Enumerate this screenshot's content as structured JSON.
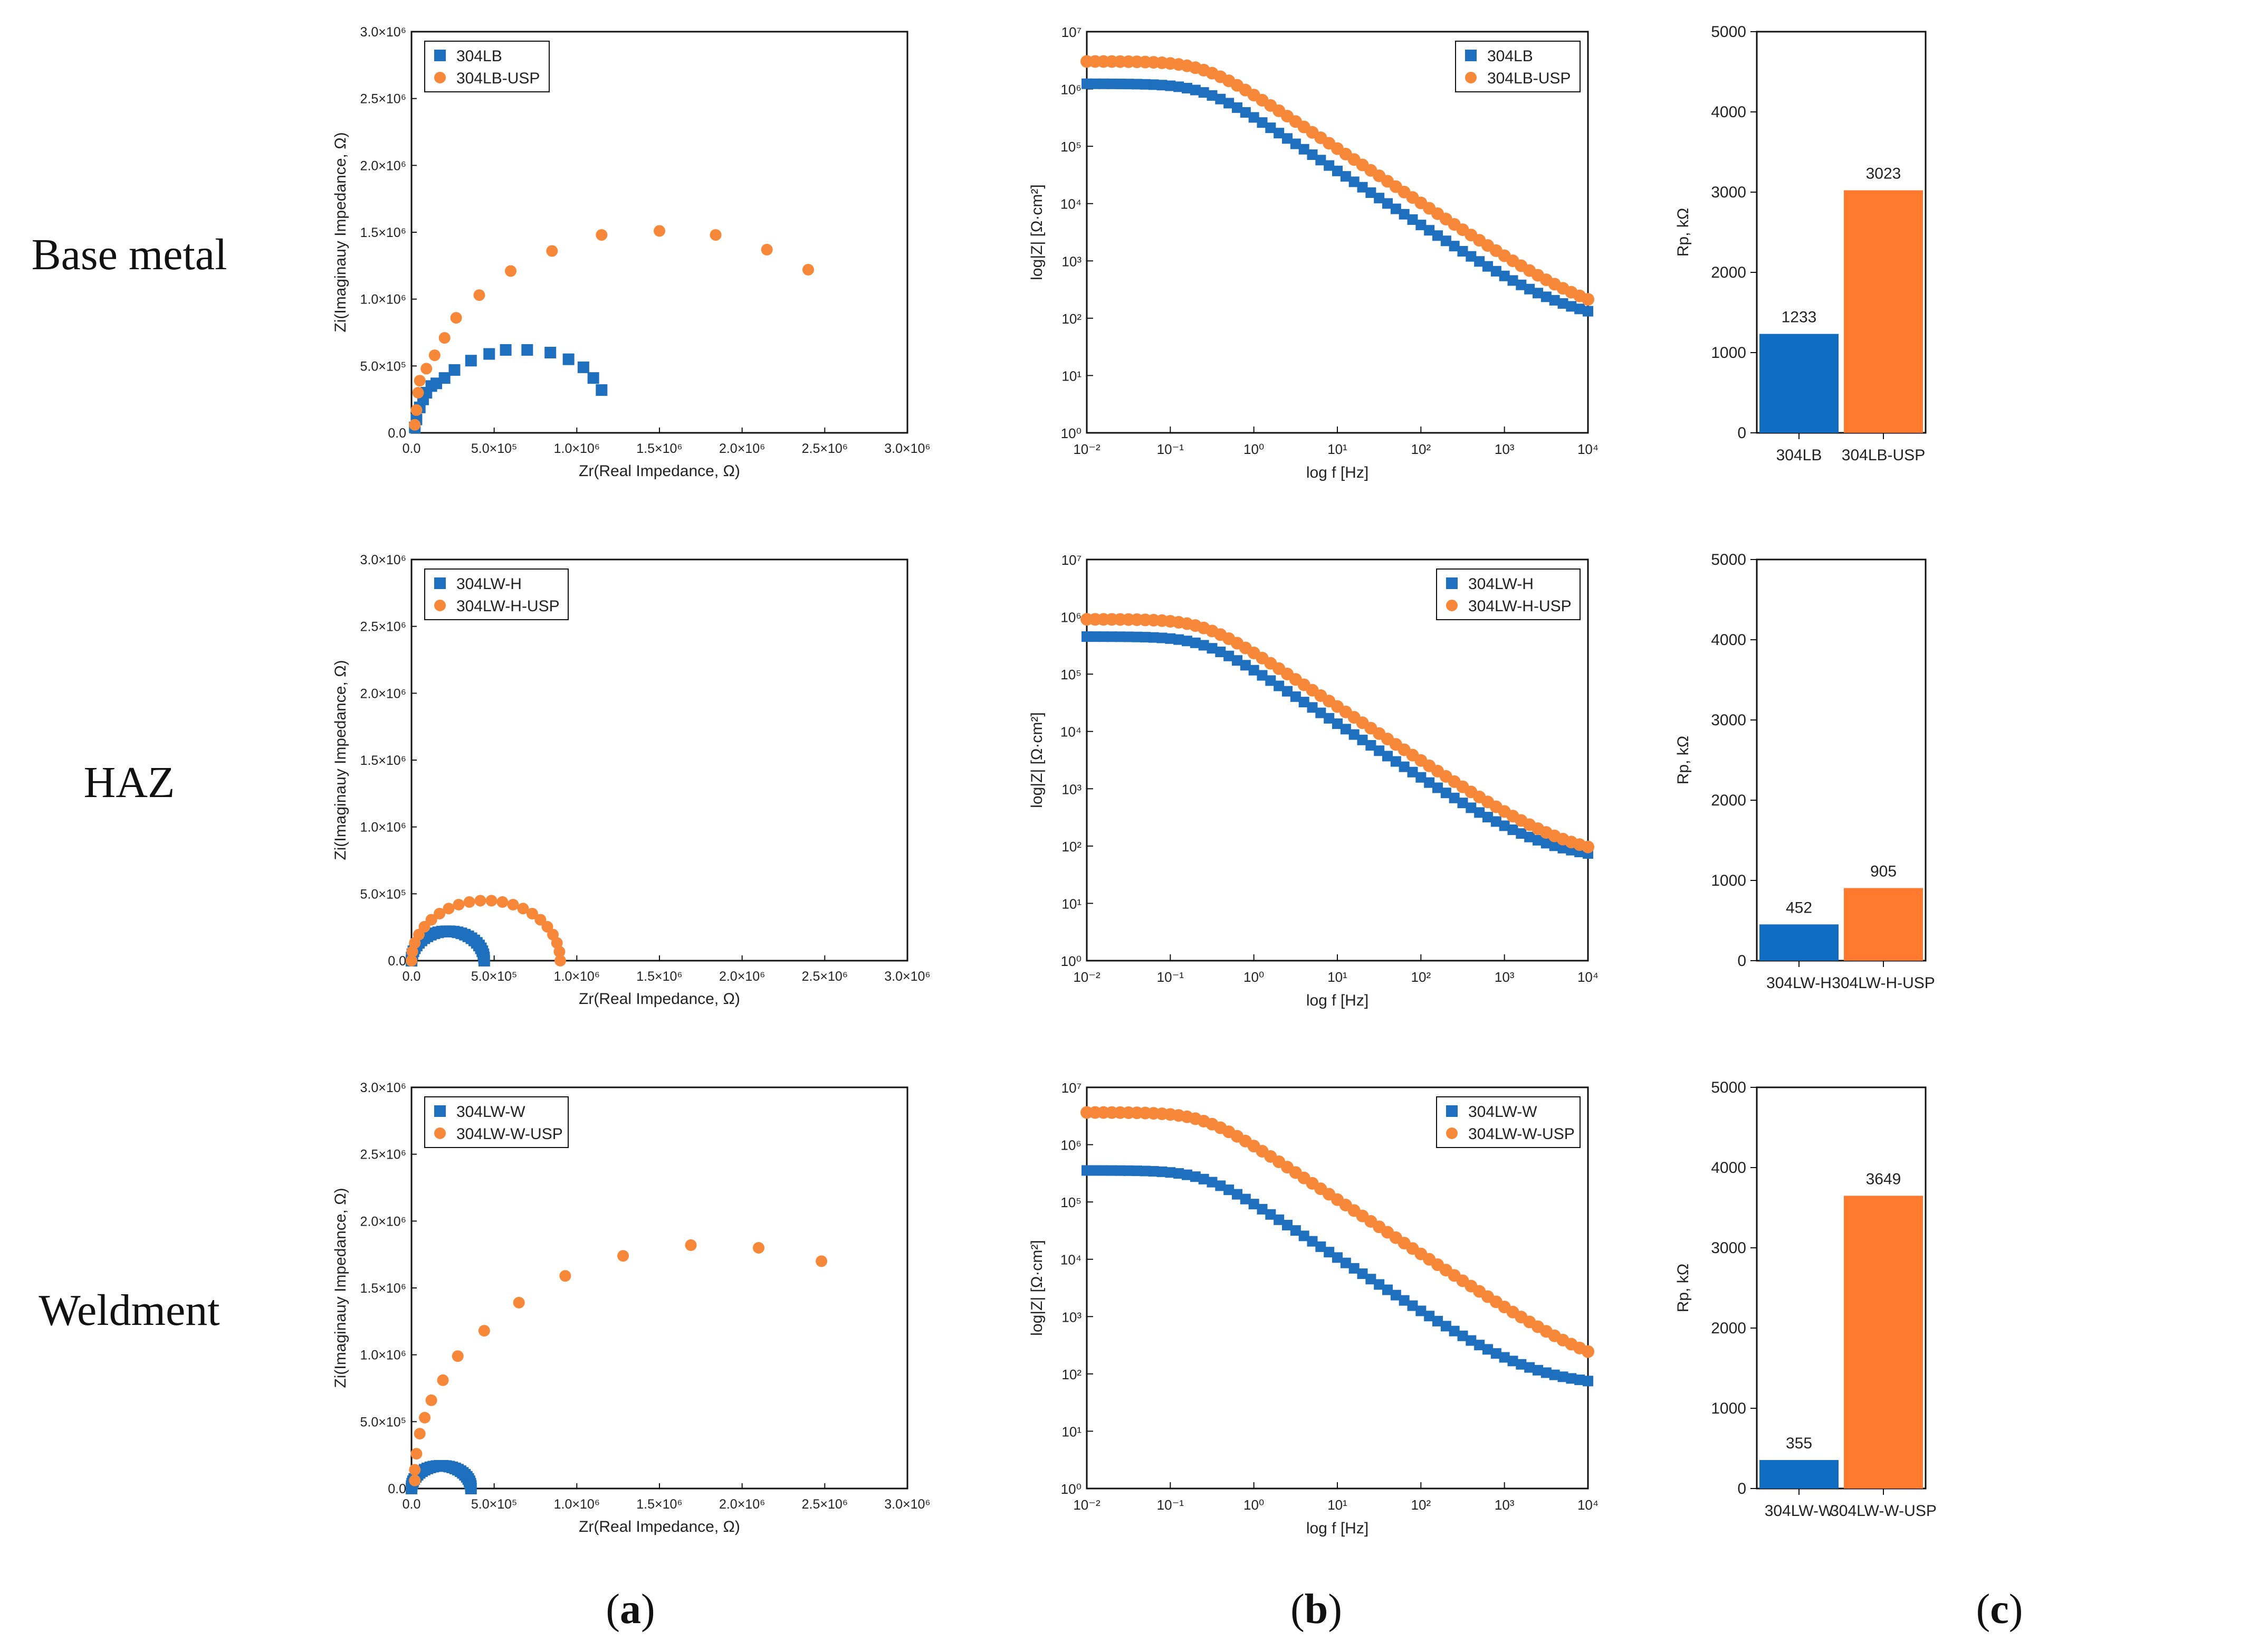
{
  "row_labels": [
    "Base metal",
    "HAZ",
    "Weldment"
  ],
  "panel_labels": {
    "a": "a",
    "b": "b",
    "c": "c"
  },
  "colors": {
    "series1": "#1f6fbf",
    "series2": "#f7883a",
    "bar1": "#0f6cc0",
    "bar2": "#ff7a2e"
  },
  "chart_data": [
    {
      "id": "nyquist-base",
      "type": "scatter",
      "xlabel": "Zr(Real Impedance, Ω)",
      "ylabel": "Zi(Imaginauy Impedance, Ω)",
      "xlim": [
        0,
        3000000
      ],
      "ylim": [
        0,
        3000000
      ],
      "xticks": [
        "0.0",
        "5.0×10⁵",
        "1.0×10⁶",
        "1.5×10⁶",
        "2.0×10⁶",
        "2.5×10⁶",
        "3.0×10⁶"
      ],
      "yticks": [
        "0.0",
        "5.0×10⁵",
        "1.0×10⁶",
        "1.5×10⁶",
        "2.0×10⁶",
        "2.5×10⁶",
        "3.0×10⁶"
      ],
      "legend_position": "top-left",
      "series": [
        {
          "name": "304LB",
          "marker": "square",
          "points": [
            [
              0.02,
              0.04
            ],
            [
              0.03,
              0.1
            ],
            [
              0.05,
              0.19
            ],
            [
              0.07,
              0.25
            ],
            [
              0.09,
              0.3
            ],
            [
              0.12,
              0.35
            ],
            [
              0.15,
              0.37
            ],
            [
              0.2,
              0.41
            ],
            [
              0.26,
              0.47
            ],
            [
              0.36,
              0.54
            ],
            [
              0.47,
              0.59
            ],
            [
              0.57,
              0.62
            ],
            [
              0.7,
              0.62
            ],
            [
              0.84,
              0.6
            ],
            [
              0.95,
              0.55
            ],
            [
              1.04,
              0.49
            ],
            [
              1.1,
              0.41
            ],
            [
              1.15,
              0.32
            ]
          ]
        },
        {
          "name": "304LB-USP",
          "marker": "circle",
          "points": [
            [
              0.02,
              0.06
            ],
            [
              0.03,
              0.17
            ],
            [
              0.04,
              0.3
            ],
            [
              0.05,
              0.39
            ],
            [
              0.09,
              0.48
            ],
            [
              0.14,
              0.58
            ],
            [
              0.2,
              0.71
            ],
            [
              0.27,
              0.86
            ],
            [
              0.41,
              1.03
            ],
            [
              0.6,
              1.21
            ],
            [
              0.85,
              1.36
            ],
            [
              1.15,
              1.48
            ],
            [
              1.5,
              1.51
            ],
            [
              1.84,
              1.48
            ],
            [
              2.15,
              1.37
            ],
            [
              2.4,
              1.22
            ]
          ]
        }
      ]
    },
    {
      "id": "bode-base",
      "type": "scatter",
      "xlabel": "log f [Hz]",
      "ylabel": "log|Z| [Ω·cm²]",
      "xlim": [
        0.01,
        10000
      ],
      "ylim": [
        1,
        10000000
      ],
      "scale": "log-log",
      "xticks": [
        "10⁻²",
        "10⁻¹",
        "10⁰",
        "10¹",
        "10²",
        "10³",
        "10⁴"
      ],
      "yticks": [
        "10⁰",
        "10¹",
        "10²",
        "10³",
        "10⁴",
        "10⁵",
        "10⁶",
        "10⁷"
      ],
      "legend_position": "top-right",
      "series": [
        {
          "name": "304LB",
          "marker": "square",
          "z_low": 1233000,
          "z_high": 80
        },
        {
          "name": "304LB-USP",
          "marker": "circle",
          "z_low": 3023000,
          "z_high": 85
        }
      ]
    },
    {
      "id": "bar-base",
      "type": "bar",
      "ylabel": "Rp, kΩ",
      "ylim": [
        0,
        5000
      ],
      "yticks": [
        "0",
        "1000",
        "2000",
        "3000",
        "4000",
        "5000"
      ],
      "categories": [
        "304LB",
        "304LB-USP"
      ],
      "values": [
        1233,
        3023
      ],
      "value_labels": [
        "1233",
        "3023"
      ]
    },
    {
      "id": "nyquist-haz",
      "type": "scatter",
      "xlabel": "Zr(Real Impedance, Ω)",
      "ylabel": "Zi(Imaginauy Impedance, Ω)",
      "xlim": [
        0,
        3000000
      ],
      "ylim": [
        0,
        3000000
      ],
      "xticks": [
        "0.0",
        "5.0×10⁵",
        "1.0×10⁶",
        "1.5×10⁶",
        "2.0×10⁶",
        "2.5×10⁶",
        "3.0×10⁶"
      ],
      "yticks": [
        "0.0",
        "5.0×10⁵",
        "1.0×10⁶",
        "1.5×10⁶",
        "2.0×10⁶",
        "2.5×10⁶",
        "3.0×10⁶"
      ],
      "legend_position": "top-left",
      "series": [
        {
          "name": "304LW-H",
          "marker": "square",
          "center": 0.22,
          "radius": 0.22,
          "height": 0.22,
          "count": 30
        },
        {
          "name": "304LW-H-USP",
          "marker": "circle",
          "center": 0.45,
          "radius": 0.45,
          "height": 0.45,
          "count": 22
        }
      ]
    },
    {
      "id": "bode-haz",
      "type": "scatter",
      "xlabel": "log f [Hz]",
      "ylabel": "log|Z| [Ω·cm²]",
      "xlim": [
        0.01,
        10000
      ],
      "ylim": [
        1,
        10000000
      ],
      "scale": "log-log",
      "xticks": [
        "10⁻²",
        "10⁻¹",
        "10⁰",
        "10¹",
        "10²",
        "10³",
        "10⁴"
      ],
      "yticks": [
        "10⁰",
        "10¹",
        "10²",
        "10³",
        "10⁴",
        "10⁵",
        "10⁶",
        "10⁷"
      ],
      "legend_position": "top-right",
      "series": [
        {
          "name": "304LW-H",
          "marker": "square",
          "z_low": 452000,
          "z_high": 55
        },
        {
          "name": "304LW-H-USP",
          "marker": "circle",
          "z_low": 905000,
          "z_high": 58
        }
      ]
    },
    {
      "id": "bar-haz",
      "type": "bar",
      "ylabel": "Rp, kΩ",
      "ylim": [
        0,
        5000
      ],
      "yticks": [
        "0",
        "1000",
        "2000",
        "3000",
        "4000",
        "5000"
      ],
      "categories": [
        "304LW-H",
        "304LW-H-USP"
      ],
      "values": [
        452,
        905
      ],
      "value_labels": [
        "452",
        "905"
      ]
    },
    {
      "id": "nyquist-weld",
      "type": "scatter",
      "xlabel": "Zr(Real Impedance, Ω)",
      "ylabel": "Zi(Imaginauy Impedance, Ω)",
      "xlim": [
        0,
        3000000
      ],
      "ylim": [
        0,
        3000000
      ],
      "xticks": [
        "0.0",
        "5.0×10⁵",
        "1.0×10⁶",
        "1.5×10⁶",
        "2.0×10⁶",
        "2.5×10⁶",
        "3.0×10⁶"
      ],
      "yticks": [
        "0.0",
        "5.0×10⁵",
        "1.0×10⁶",
        "1.5×10⁶",
        "2.0×10⁶",
        "2.5×10⁶",
        "3.0×10⁶"
      ],
      "legend_position": "top-left",
      "series": [
        {
          "name": "304LW-W",
          "marker": "square",
          "center": 0.18,
          "radius": 0.18,
          "height": 0.17,
          "count": 30
        },
        {
          "name": "304LW-W-USP",
          "marker": "circle",
          "points": [
            [
              0.02,
              0.06
            ],
            [
              0.02,
              0.14
            ],
            [
              0.03,
              0.26
            ],
            [
              0.05,
              0.41
            ],
            [
              0.08,
              0.53
            ],
            [
              0.12,
              0.66
            ],
            [
              0.19,
              0.81
            ],
            [
              0.28,
              0.99
            ],
            [
              0.44,
              1.18
            ],
            [
              0.65,
              1.39
            ],
            [
              0.93,
              1.59
            ],
            [
              1.28,
              1.74
            ],
            [
              1.69,
              1.82
            ],
            [
              2.1,
              1.8
            ],
            [
              2.48,
              1.7
            ]
          ]
        }
      ]
    },
    {
      "id": "bode-weld",
      "type": "scatter",
      "xlabel": "log f [Hz]",
      "ylabel": "log|Z| [Ω·cm²]",
      "xlim": [
        0.01,
        10000
      ],
      "ylim": [
        1,
        10000000
      ],
      "scale": "log-log",
      "xticks": [
        "10⁻²",
        "10⁻¹",
        "10⁰",
        "10¹",
        "10²",
        "10³",
        "10⁴"
      ],
      "yticks": [
        "10⁰",
        "10¹",
        "10²",
        "10³",
        "10⁴",
        "10⁵",
        "10⁶",
        "10⁷"
      ],
      "legend_position": "top-right",
      "series": [
        {
          "name": "304LW-W",
          "marker": "square",
          "z_low": 355000,
          "z_high": 60
        },
        {
          "name": "304LW-W-USP",
          "marker": "circle",
          "z_low": 3649000,
          "z_high": 90
        }
      ]
    },
    {
      "id": "bar-weld",
      "type": "bar",
      "ylabel": "Rp, kΩ",
      "ylim": [
        0,
        5000
      ],
      "yticks": [
        "0",
        "1000",
        "2000",
        "3000",
        "4000",
        "5000"
      ],
      "categories": [
        "304LW-W",
        "304LW-W-USP"
      ],
      "values": [
        355,
        3649
      ],
      "value_labels": [
        "355",
        "3649"
      ]
    }
  ]
}
